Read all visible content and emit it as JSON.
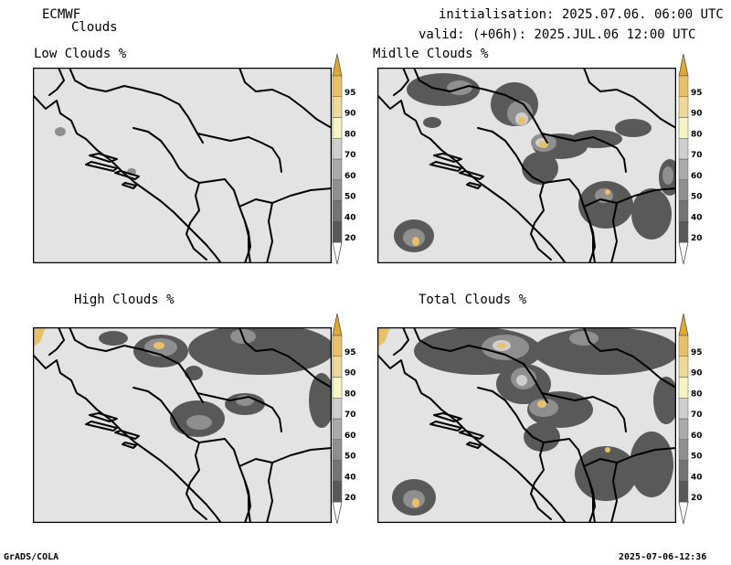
{
  "header": {
    "model": "ECMWF",
    "product": "Clouds",
    "init": "initialisation: 2025.07.06. 06:00 UTC",
    "valid": "valid: (+06h): 2025.JUL.06 12:00 UTC"
  },
  "panels": [
    {
      "id": "low",
      "title": "Low Clouds %"
    },
    {
      "id": "middle",
      "title": "Midlle Clouds %"
    },
    {
      "id": "high",
      "title": "High Clouds %"
    },
    {
      "id": "total",
      "title": "Total Clouds %"
    }
  ],
  "colorbar": {
    "levels": [
      {
        "label": "",
        "color": "#ffffff"
      },
      {
        "label": "20",
        "color": "#595959"
      },
      {
        "label": "40",
        "color": "#747474"
      },
      {
        "label": "50",
        "color": "#8f8f8f"
      },
      {
        "label": "60",
        "color": "#aaaaaa"
      },
      {
        "label": "70",
        "color": "#cfcfcf"
      },
      {
        "label": "80",
        "color": "#f5f5c4"
      },
      {
        "label": "90",
        "color": "#eed99a"
      },
      {
        "label": "95",
        "color": "#e9c06a"
      },
      {
        "label": "",
        "color": "#e0a82e"
      }
    ]
  },
  "footer": {
    "left": "GrADS/COLA",
    "right": "2025-07-06-12:36"
  }
}
